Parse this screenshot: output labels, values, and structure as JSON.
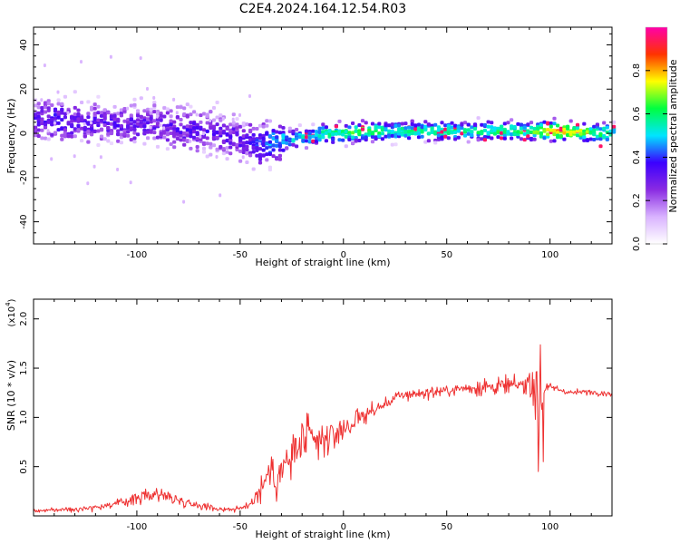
{
  "title": "C2E4.2024.164.12.54.R03",
  "colors": {
    "snr_line": "#ee3030",
    "frame": "#000000",
    "colormap": [
      "#ffffff",
      "#d9b3ff",
      "#8a2be2",
      "#3b00ff",
      "#00e5ff",
      "#00ff40",
      "#ffff00",
      "#ff3300",
      "#ff00aa"
    ]
  },
  "chart_data": [
    {
      "type": "heatmap",
      "title": "C2E4.2024.164.12.54.R03",
      "xlabel": "Height of straight line (km)",
      "ylabel": "Frequency (Hz)",
      "xlim": [
        -150,
        130
      ],
      "ylim": [
        -50,
        48
      ],
      "xticks": [
        -100,
        -50,
        0,
        50,
        100
      ],
      "yticks": [
        -40,
        -20,
        0,
        20,
        40
      ],
      "colorbar": {
        "label": "Normalized spectral amplitude",
        "range": [
          0,
          1
        ],
        "ticks": [
          "0.0",
          "0.2",
          "0.4",
          "0.6",
          "0.8"
        ],
        "tick_values": [
          0.0,
          0.2,
          0.4,
          0.6,
          0.8
        ]
      },
      "ridge": {
        "x": [
          -150,
          -140,
          -130,
          -120,
          -110,
          -100,
          -90,
          -80,
          -70,
          -60,
          -50,
          -40,
          -35,
          -30,
          -20,
          -10,
          0,
          10,
          20,
          50,
          90,
          100,
          130
        ],
        "y": [
          6,
          6,
          5,
          5,
          4,
          4,
          3,
          2,
          1,
          0,
          -3,
          -5,
          -4,
          -3,
          -2,
          0,
          0,
          1,
          1,
          1,
          1,
          1,
          0
        ],
        "amplitude": [
          0.3,
          0.35,
          0.3,
          0.3,
          0.3,
          0.3,
          0.3,
          0.3,
          0.3,
          0.3,
          0.3,
          0.4,
          0.45,
          0.45,
          0.5,
          0.55,
          0.6,
          0.65,
          0.55,
          0.55,
          0.6,
          0.8,
          0.55
        ]
      }
    },
    {
      "type": "line",
      "xlabel": "Height of straight line (km)",
      "ylabel": "SNR (10 * v/v)",
      "y_multiplier": "(x10",
      "y_multiplier_exp": "4",
      "y_multiplier_close": ")",
      "xlim": [
        -150,
        130
      ],
      "ylim": [
        0,
        22000
      ],
      "xticks": [
        -100,
        -50,
        0,
        50,
        100
      ],
      "yticks": [
        5000,
        10000,
        15000,
        20000
      ],
      "ytick_labels": [
        "0.5",
        "1.0",
        "1.5",
        "2.0"
      ],
      "series": [
        {
          "x": [
            -150,
            -140,
            -130,
            -120,
            -110,
            -100,
            -90,
            -80,
            -70,
            -60,
            -50,
            -45,
            -40,
            -36,
            -32,
            -28,
            -24,
            -20,
            -16,
            -12,
            -8,
            -4,
            0,
            5,
            10,
            15,
            20,
            25,
            30,
            40,
            50,
            60,
            70,
            80,
            88,
            92,
            95,
            97,
            100,
            110,
            120,
            130
          ],
          "y": [
            500,
            600,
            700,
            900,
            1200,
            1800,
            2300,
            1600,
            1100,
            700,
            700,
            1300,
            2700,
            4500,
            4000,
            5000,
            6200,
            7500,
            7800,
            7300,
            7800,
            8300,
            8800,
            9500,
            10300,
            10700,
            11300,
            12000,
            12300,
            12500,
            12700,
            13000,
            13100,
            13200,
            13300,
            14000,
            11000,
            12800,
            13100,
            12500,
            12600,
            12400
          ],
          "noise": [
            250,
            250,
            300,
            400,
            500,
            700,
            900,
            600,
            450,
            350,
            350,
            700,
            1800,
            2600,
            2600,
            3200,
            3200,
            2800,
            2500,
            2200,
            1800,
            1600,
            1600,
            1500,
            1200,
            900,
            800,
            700,
            650,
            650,
            700,
            900,
            1100,
            1000,
            1000,
            4200,
            4800,
            600,
            400,
            350,
            350,
            350
          ]
        }
      ]
    }
  ]
}
